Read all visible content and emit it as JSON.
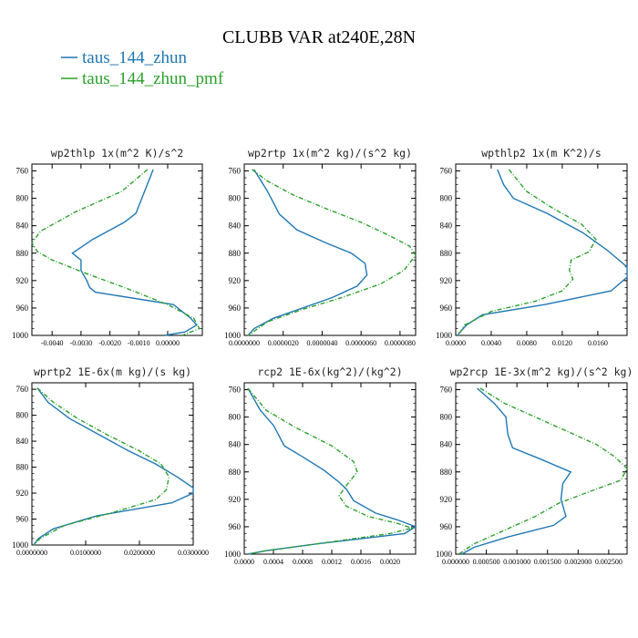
{
  "title": "CLUBB VAR at240E,28N",
  "legend": [
    {
      "label": "taus_144_zhun",
      "color": "#1f77b4",
      "dash": false
    },
    {
      "label": "taus_144_zhun_pmf",
      "color": "#2ca02c",
      "dash": true
    }
  ],
  "chart_data": [
    {
      "type": "line",
      "title": "wp2thlp  1x(m^2 K)/s^2",
      "xlim": [
        -0.0047,
        0.0012
      ],
      "ylim": [
        1000,
        750
      ],
      "xticks": [
        -0.004,
        -0.003,
        -0.002,
        -0.001,
        0.0
      ],
      "xtick_labels": [
        "-0.0040",
        "-0.0030",
        "-0.0020",
        "-0.0010",
        "0.00000"
      ],
      "yticks": [
        760,
        800,
        840,
        880,
        920,
        960,
        1000
      ],
      "series": [
        {
          "name": "taus_144_zhun",
          "x": [
            -0.0005,
            -0.0011,
            -0.0015,
            -0.0026,
            -0.0033,
            -0.003,
            -0.003,
            -0.0028,
            -0.0027,
            -0.0025,
            0.0002,
            0.0008,
            0.001,
            0.0006,
            -0.0001
          ],
          "y": [
            758,
            822,
            835,
            860,
            880,
            890,
            905,
            920,
            930,
            937,
            955,
            975,
            985,
            995,
            1000
          ]
        },
        {
          "name": "taus_144_zhun_pmf",
          "x": [
            -0.0007,
            -0.0016,
            -0.0032,
            -0.0044,
            -0.0047,
            -0.0045,
            -0.004,
            -0.0028,
            -0.0015,
            0.0,
            0.0009,
            0.0011,
            0.0005
          ],
          "y": [
            758,
            790,
            820,
            848,
            865,
            878,
            890,
            910,
            930,
            955,
            975,
            990,
            1000
          ]
        }
      ]
    },
    {
      "type": "line",
      "title": "wp2rtp  1x(m^2 kg)/(s^2 kg)",
      "xlim": [
        0.0,
        8.8e-06
      ],
      "ylim": [
        1000,
        750
      ],
      "xticks": [
        0.0,
        2e-06,
        4e-06,
        6e-06,
        8e-06
      ],
      "xtick_labels": [
        "0.0000000",
        "0.0000020",
        "0.0000040",
        "0.0000060",
        "0.0000080"
      ],
      "yticks": [
        760,
        800,
        840,
        880,
        920,
        960,
        1000
      ],
      "series": [
        {
          "name": "taus_144_zhun",
          "x": [
            5e-07,
            1.2e-06,
            1.8e-06,
            2.7e-06,
            4.2e-06,
            5.5e-06,
            6.2e-06,
            6.3e-06,
            5.8e-06,
            4.5e-06,
            3e-06,
            1.5e-06,
            5e-07,
            2e-07
          ],
          "y": [
            758,
            790,
            823,
            846,
            865,
            880,
            895,
            912,
            928,
            945,
            960,
            975,
            990,
            1000
          ]
        },
        {
          "name": "taus_144_zhun_pmf",
          "x": [
            4e-07,
            1.2e-06,
            2.5e-06,
            4.2e-06,
            6e-06,
            7.5e-06,
            8.5e-06,
            8.8e-06,
            8.2e-06,
            7e-06,
            5e-06,
            3e-06,
            1.2e-06,
            2e-07
          ],
          "y": [
            758,
            775,
            795,
            815,
            835,
            855,
            870,
            883,
            905,
            925,
            945,
            962,
            980,
            1000
          ]
        }
      ]
    },
    {
      "type": "line",
      "title": "wpthlp2  1x(m K^2)/s",
      "xlim": [
        0.0,
        0.0193
      ],
      "ylim": [
        1000,
        750
      ],
      "xticks": [
        0.0,
        0.004,
        0.008,
        0.012,
        0.016
      ],
      "xtick_labels": [
        "0.0000",
        "0.0040",
        "0.0080",
        "0.0120",
        "0.0160"
      ],
      "yticks": [
        760,
        800,
        840,
        880,
        920,
        960,
        1000
      ],
      "series": [
        {
          "name": "taus_144_zhun",
          "x": [
            0.0047,
            0.0054,
            0.0065,
            0.0103,
            0.0143,
            0.017,
            0.0193,
            0.0193,
            0.0175,
            0.01,
            0.003,
            0.0012,
            0.0005,
            0.0002
          ],
          "y": [
            758,
            780,
            800,
            822,
            850,
            875,
            900,
            915,
            935,
            955,
            970,
            985,
            995,
            1000
          ]
        },
        {
          "name": "taus_144_zhun_pmf",
          "x": [
            0.006,
            0.008,
            0.011,
            0.0142,
            0.0158,
            0.015,
            0.013,
            0.0128,
            0.0132,
            0.012,
            0.009,
            0.004,
            0.001,
            0.0003
          ],
          "y": [
            758,
            790,
            815,
            838,
            860,
            878,
            890,
            905,
            918,
            935,
            950,
            965,
            985,
            1000
          ]
        }
      ]
    },
    {
      "type": "line",
      "title": "wprtp2  1E-6x(m kg)/(s kg)",
      "xlim": [
        0.0,
        0.03
      ],
      "ylim": [
        1000,
        750
      ],
      "xticks": [
        0.0,
        0.01,
        0.02,
        0.03
      ],
      "xtick_labels": [
        "0.0000000",
        "0.0100000",
        "0.0200000",
        "0.0300000"
      ],
      "yticks": [
        760,
        800,
        840,
        880,
        920,
        960,
        1000
      ],
      "series": [
        {
          "name": "taus_144_zhun",
          "x": [
            0.001,
            0.003,
            0.007,
            0.0125,
            0.018,
            0.023,
            0.027,
            0.03,
            0.03,
            0.026,
            0.012,
            0.004,
            0.0012,
            0.0003
          ],
          "y": [
            758,
            780,
            805,
            830,
            855,
            875,
            895,
            912,
            920,
            935,
            955,
            975,
            990,
            1000
          ]
        },
        {
          "name": "taus_144_zhun_pmf",
          "x": [
            0.001,
            0.004,
            0.0085,
            0.014,
            0.02,
            0.024,
            0.0255,
            0.025,
            0.023,
            0.015,
            0.006,
            0.0015,
            0.0003
          ],
          "y": [
            758,
            780,
            805,
            830,
            855,
            875,
            895,
            915,
            930,
            950,
            970,
            990,
            1000
          ]
        }
      ]
    },
    {
      "type": "line",
      "title": "rcp2  1E-6x(kg^2)/(kg^2)",
      "xlim": [
        0.0,
        0.00235
      ],
      "ylim": [
        1000,
        750
      ],
      "xticks": [
        0.0,
        0.0004,
        0.0008,
        0.0012,
        0.0016,
        0.002
      ],
      "xtick_labels": [
        "0.0000",
        "0.0004",
        "0.0008",
        "0.0012",
        "0.0016",
        "0.0020"
      ],
      "yticks": [
        760,
        800,
        840,
        880,
        920,
        960,
        1000
      ],
      "series": [
        {
          "name": "taus_144_zhun",
          "x": [
            5e-05,
            0.00022,
            0.0004,
            0.00055,
            0.0008,
            0.0011,
            0.0013,
            0.0014,
            0.0015,
            0.0018,
            0.0021,
            0.00235,
            0.0022,
            0.001,
            0.0003,
            5e-05
          ],
          "y": [
            758,
            790,
            812,
            842,
            858,
            878,
            895,
            905,
            922,
            940,
            950,
            960,
            970,
            985,
            995,
            1000
          ]
        },
        {
          "name": "taus_144_zhun_pmf",
          "x": [
            5e-05,
            0.0003,
            0.0007,
            0.0012,
            0.0015,
            0.00155,
            0.0014,
            0.0013,
            0.0014,
            0.0017,
            0.0021,
            0.0023,
            0.002,
            0.001,
            0.0003,
            5e-05
          ],
          "y": [
            758,
            790,
            815,
            842,
            865,
            880,
            900,
            915,
            930,
            945,
            955,
            962,
            970,
            985,
            995,
            1000
          ]
        }
      ]
    },
    {
      "type": "line",
      "title": "wp2rcp  1E-3x(m^2 kg)/(s^2 kg)",
      "xlim": [
        0.0,
        0.0028
      ],
      "ylim": [
        1000,
        750
      ],
      "xticks": [
        0.0,
        0.0005,
        0.001,
        0.0015,
        0.002,
        0.0025
      ],
      "xtick_labels": [
        "0.000000",
        "0.000500",
        "0.001000",
        "0.001500",
        "0.002000",
        "0.002500"
      ],
      "yticks": [
        760,
        800,
        840,
        880,
        920,
        960,
        1000
      ],
      "series": [
        {
          "name": "taus_144_zhun",
          "x": [
            0.00035,
            0.00063,
            0.00082,
            0.00085,
            0.00093,
            0.00135,
            0.00188,
            0.00175,
            0.00172,
            0.0018,
            0.0016,
            0.00085,
            0.0003,
            0.0001
          ],
          "y": [
            758,
            780,
            800,
            825,
            845,
            860,
            880,
            897,
            920,
            945,
            958,
            975,
            990,
            1000
          ]
        },
        {
          "name": "taus_144_zhun_pmf",
          "x": [
            0.0004,
            0.0008,
            0.0013,
            0.0018,
            0.0023,
            0.0026,
            0.0028,
            0.0027,
            0.0023,
            0.0017,
            0.0013,
            0.0008,
            0.0003,
            5e-05
          ],
          "y": [
            758,
            780,
            800,
            820,
            840,
            858,
            875,
            892,
            905,
            925,
            945,
            965,
            985,
            1000
          ]
        }
      ]
    }
  ]
}
